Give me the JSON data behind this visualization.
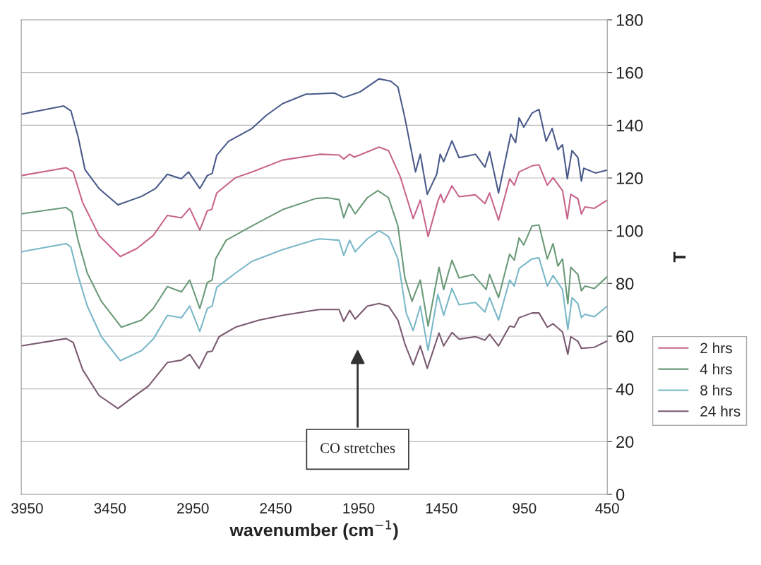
{
  "chart_data": {
    "type": "line",
    "xlabel": "wavenumber (cm$^{−1}$)",
    "ylabel": "T",
    "xlim": [
      3985,
      450
    ],
    "xticks": [
      3950,
      3450,
      2950,
      2450,
      1950,
      1450,
      950,
      450
    ],
    "ylim": [
      0,
      180
    ],
    "yticks": [
      0,
      20,
      40,
      60,
      80,
      100,
      120,
      140,
      160,
      180
    ],
    "grid": "y",
    "legend": "right",
    "line_style": "solid",
    "marker": "none",
    "annotations": [
      "CO stretches"
    ],
    "series": [
      {
        "color": "#4a5a8a",
        "x": [
          3985,
          3729,
          3686,
          3643,
          3601,
          3516,
          3402,
          3260,
          3175,
          3104,
          3019,
          2976,
          2908,
          2863,
          2834,
          2806,
          2735,
          2593,
          2508,
          2409,
          2267,
          2238,
          2096,
          2040,
          1940,
          1827,
          1756,
          1713,
          1671,
          1607,
          1578,
          1536,
          1479,
          1458,
          1437,
          1387,
          1344,
          1245,
          1188,
          1160,
          1106,
          1032,
          1003,
          982,
          954,
          904,
          862,
          819,
          783,
          748,
          720,
          691,
          663,
          627,
          606,
          592,
          521,
          450
        ],
        "values": [
          144.2,
          147.3,
          145.5,
          135.8,
          123.2,
          116,
          109.8,
          113,
          116,
          121.4,
          119.7,
          122.3,
          116,
          120.9,
          121.7,
          128.6,
          133.9,
          138.8,
          143.7,
          148.2,
          151.8,
          151.8,
          152.2,
          150.5,
          152.7,
          157.6,
          156.7,
          154.5,
          142.8,
          122.3,
          129,
          113.8,
          121.4,
          129,
          126.2,
          134.1,
          127.7,
          129,
          124.1,
          129.9,
          114.3,
          136.6,
          133.4,
          142.8,
          139.3,
          144.6,
          146,
          133.9,
          138.8,
          130.8,
          132.6,
          119.7,
          130.4,
          127.7,
          118.8,
          123.7,
          121.9,
          123
        ]
      },
      {
        "name": "2 hrs",
        "color": "#c8648c",
        "x": [
          3985,
          3715,
          3672,
          3615,
          3516,
          3388,
          3289,
          3189,
          3104,
          3019,
          2969,
          2908,
          2863,
          2837,
          2806,
          2693,
          2593,
          2409,
          2210,
          2182,
          2068,
          2040,
          2004,
          1976,
          1827,
          1770,
          1699,
          1621,
          1578,
          1531,
          1472,
          1455,
          1437,
          1387,
          1344,
          1245,
          1188,
          1160,
          1106,
          1039,
          1011,
          982,
          904,
          862,
          812,
          777,
          720,
          691,
          670,
          627,
          606,
          585,
          528,
          450
        ],
        "values": [
          120.9,
          123.9,
          122.3,
          110.7,
          98.2,
          90.2,
          93.2,
          98.2,
          105.8,
          104.9,
          108.5,
          100.2,
          107.6,
          108,
          114.3,
          120.1,
          122.3,
          126.8,
          128.7,
          129,
          128.7,
          127.2,
          129,
          127.9,
          131.7,
          130.4,
          120.5,
          104.6,
          111.6,
          97.8,
          111.2,
          113.8,
          110.7,
          117,
          112.9,
          113.6,
          110.3,
          114.3,
          104,
          119.7,
          117.3,
          122.3,
          124.6,
          125,
          117.3,
          120.1,
          115.2,
          104.5,
          113.8,
          112.1,
          106.3,
          109,
          108.5,
          111.6
        ]
      },
      {
        "name": "4 hrs",
        "color": "#6a9a78",
        "x": [
          3985,
          3715,
          3680,
          3643,
          3587,
          3502,
          3381,
          3260,
          3189,
          3104,
          3019,
          2969,
          2908,
          2863,
          2834,
          2813,
          2749,
          2593,
          2409,
          2210,
          2139,
          2068,
          2040,
          2008,
          1971,
          1898,
          1834,
          1770,
          1713,
          1671,
          1628,
          1578,
          1531,
          1465,
          1437,
          1387,
          1344,
          1259,
          1181,
          1160,
          1106,
          1039,
          1011,
          982,
          954,
          904,
          862,
          812,
          777,
          748,
          720,
          688,
          670,
          627,
          606,
          585,
          528,
          450
        ],
        "values": [
          106.4,
          108.8,
          107.1,
          96.4,
          83.9,
          73.2,
          63.4,
          66.1,
          70.5,
          78.8,
          76.8,
          81.3,
          70.5,
          80.4,
          81.3,
          89.3,
          96.4,
          101.8,
          108,
          112.2,
          112.5,
          111.8,
          104.9,
          110.3,
          106.4,
          112.5,
          115.2,
          112.5,
          101.8,
          82.1,
          73.2,
          81.3,
          63.8,
          86.1,
          77.7,
          88.8,
          82.1,
          83.4,
          77.7,
          83.4,
          74.6,
          91.1,
          88.8,
          97.3,
          94.6,
          101.8,
          102.2,
          89.3,
          95.1,
          86.6,
          89.3,
          72.3,
          86.1,
          83.4,
          77.2,
          79,
          78.1,
          82.6
        ]
      },
      {
        "name": "8 hrs",
        "color": "#7ab8c8",
        "x": [
          3985,
          3715,
          3686,
          3643,
          3587,
          3502,
          3388,
          3260,
          3189,
          3104,
          3019,
          2969,
          2908,
          2863,
          2834,
          2806,
          2693,
          2593,
          2409,
          2210,
          2182,
          2068,
          2040,
          2004,
          1971,
          1898,
          1827,
          1770,
          1713,
          1663,
          1621,
          1578,
          1531,
          1472,
          1437,
          1387,
          1344,
          1245,
          1188,
          1160,
          1106,
          1039,
          1011,
          982,
          904,
          862,
          812,
          777,
          720,
          688,
          663,
          627,
          606,
          585,
          528,
          450
        ],
        "values": [
          92,
          95.1,
          93.8,
          83,
          71.4,
          59.8,
          50.7,
          54.5,
          58.9,
          67.9,
          67,
          71.4,
          61.8,
          70.5,
          71.4,
          78.5,
          83.9,
          88.4,
          92.8,
          96.6,
          96.9,
          96.4,
          90.6,
          96.4,
          92,
          96.9,
          100,
          97.8,
          89.3,
          68.8,
          62.1,
          71.4,
          54.6,
          75.9,
          67.9,
          78.1,
          71.9,
          72.8,
          69.2,
          74.6,
          66.1,
          81.3,
          79,
          85.7,
          89.3,
          89.7,
          79,
          83,
          77.7,
          62.5,
          74.6,
          72.3,
          67,
          68.3,
          67.4,
          71.4
        ]
      },
      {
        "name": "24 hrs",
        "color": "#7a5a70",
        "x": [
          3985,
          3715,
          3672,
          3615,
          3516,
          3402,
          3317,
          3218,
          3104,
          3019,
          2969,
          2912,
          2863,
          2834,
          2792,
          2693,
          2550,
          2409,
          2210,
          2182,
          2068,
          2040,
          2004,
          1971,
          1898,
          1827,
          1770,
          1713,
          1671,
          1621,
          1578,
          1536,
          1465,
          1437,
          1387,
          1344,
          1245,
          1188,
          1160,
          1106,
          1039,
          1011,
          982,
          904,
          862,
          812,
          777,
          720,
          688,
          670,
          627,
          606,
          528,
          450
        ],
        "values": [
          56.3,
          59.1,
          57.6,
          47.3,
          37.5,
          32.6,
          36.6,
          41.1,
          50,
          50.9,
          53.1,
          47.8,
          54,
          54.3,
          59.8,
          63.4,
          66.1,
          67.9,
          69.9,
          70.1,
          70.1,
          65.6,
          69.8,
          66.5,
          71.4,
          72.4,
          71.4,
          66.1,
          57.1,
          49.1,
          56.3,
          47.8,
          61.2,
          56.3,
          61.4,
          58.9,
          59.8,
          58.5,
          60.7,
          56.3,
          63.8,
          63.4,
          67,
          68.8,
          68.8,
          63.4,
          64.7,
          61.6,
          53.1,
          59.8,
          58,
          55.4,
          55.8,
          58.2
        ]
      }
    ]
  }
}
